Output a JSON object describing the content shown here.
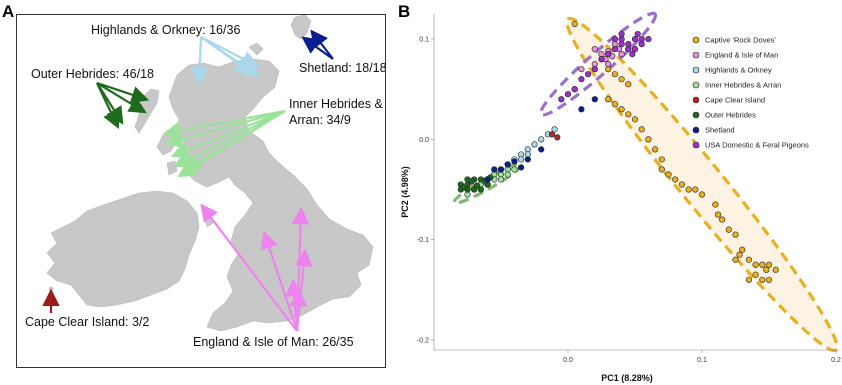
{
  "panel_a": {
    "letter": "A",
    "labels": {
      "highlands": "Highlands & Orkney: 16/36",
      "shetland": "Shetland: 18/18",
      "outer": "Outer Hebrides: 46/18",
      "inner_line1": "Inner Hebrides &",
      "inner_line2": "Arran: 34/9",
      "cape": "Cape Clear Island: 3/2",
      "england": "England & Isle of Man: 26/35"
    },
    "colors": {
      "land": "#c8c8c8",
      "highlands": "#a8d8ea",
      "shetland": "#0a1f8f",
      "outer": "#1e6b1e",
      "inner": "#9be39b",
      "cape": "#9b1c1c",
      "england": "#ee82ee"
    }
  },
  "panel_b": {
    "letter": "B"
  },
  "chart_data": {
    "type": "scatter",
    "xlabel": "PC1 (8.28%)",
    "ylabel": "PC2 (4.98%)",
    "xlim": [
      -0.1,
      0.2
    ],
    "ylim": [
      -0.21,
      0.125
    ],
    "x_ticks": [
      0.0,
      0.1,
      0.2
    ],
    "x_tick_labels": [
      "0.0",
      "0.1",
      "0.2"
    ],
    "y_ticks": [
      0.1,
      0.0,
      -0.1,
      -0.2
    ],
    "y_tick_labels": [
      "0.1",
      "0.0",
      "-0.1",
      "-0.2"
    ],
    "grid": false,
    "legend_position": "top-right",
    "series": [
      {
        "name": "Captive 'Rock Doves'",
        "color": "#e8b020",
        "points": [
          [
            0.03,
            0.07
          ],
          [
            0.035,
            0.065
          ],
          [
            0.04,
            0.06
          ],
          [
            0.045,
            0.055
          ],
          [
            0.03,
            0.04
          ],
          [
            0.035,
            0.035
          ],
          [
            0.04,
            0.03
          ],
          [
            0.045,
            0.025
          ],
          [
            0.05,
            0.02
          ],
          [
            0.055,
            0.01
          ],
          [
            0.06,
            0.0
          ],
          [
            0.065,
            -0.01
          ],
          [
            0.07,
            -0.02
          ],
          [
            0.07,
            -0.03
          ],
          [
            0.075,
            -0.035
          ],
          [
            0.08,
            -0.04
          ],
          [
            0.085,
            -0.045
          ],
          [
            0.09,
            -0.05
          ],
          [
            0.095,
            -0.05
          ],
          [
            0.1,
            -0.055
          ],
          [
            0.11,
            -0.065
          ],
          [
            0.112,
            -0.075
          ],
          [
            0.115,
            -0.08
          ],
          [
            0.12,
            -0.09
          ],
          [
            0.125,
            -0.095
          ],
          [
            0.13,
            -0.11
          ],
          [
            0.128,
            -0.115
          ],
          [
            0.135,
            -0.12
          ],
          [
            0.14,
            -0.125
          ],
          [
            0.145,
            -0.125
          ],
          [
            0.15,
            -0.125
          ],
          [
            0.148,
            -0.13
          ],
          [
            0.155,
            -0.13
          ],
          [
            0.14,
            -0.135
          ],
          [
            0.145,
            -0.14
          ],
          [
            0.135,
            -0.14
          ],
          [
            0.15,
            -0.14
          ],
          [
            0.125,
            -0.12
          ],
          [
            0.005,
            0.115
          ],
          [
            0.025,
            0.08
          ]
        ]
      },
      {
        "name": "England & Isle of Man",
        "color": "#e890d8",
        "points": [
          [
            0.02,
            0.09
          ],
          [
            0.025,
            0.085
          ],
          [
            0.03,
            0.088
          ],
          [
            0.035,
            0.095
          ],
          [
            0.028,
            0.08
          ],
          [
            0.033,
            0.083
          ],
          [
            0.038,
            0.09
          ],
          [
            0.02,
            0.075
          ],
          [
            0.04,
            0.085
          ],
          [
            0.01,
            0.07
          ],
          [
            0.045,
            0.09
          ],
          [
            0.03,
            0.075
          ]
        ]
      },
      {
        "name": "Highlands & Orkney",
        "color": "#a8d8ea",
        "points": [
          [
            -0.05,
            -0.03
          ],
          [
            -0.045,
            -0.025
          ],
          [
            -0.04,
            -0.02
          ],
          [
            -0.035,
            -0.015
          ],
          [
            -0.03,
            -0.01
          ],
          [
            -0.025,
            -0.005
          ],
          [
            -0.02,
            0.0
          ],
          [
            -0.015,
            0.005
          ],
          [
            -0.01,
            0.01
          ],
          [
            -0.055,
            -0.035
          ],
          [
            -0.035,
            -0.02
          ],
          [
            -0.03,
            -0.015
          ]
        ]
      },
      {
        "name": "Inner Hebrides & Arran",
        "color": "#9be39b",
        "points": [
          [
            -0.06,
            -0.04
          ],
          [
            -0.055,
            -0.035
          ],
          [
            -0.05,
            -0.035
          ],
          [
            -0.045,
            -0.03
          ],
          [
            -0.04,
            -0.03
          ],
          [
            -0.065,
            -0.045
          ],
          [
            -0.06,
            -0.045
          ],
          [
            -0.07,
            -0.05
          ],
          [
            -0.075,
            -0.055
          ],
          [
            -0.05,
            -0.04
          ],
          [
            -0.045,
            -0.035
          ],
          [
            -0.055,
            -0.04
          ]
        ]
      },
      {
        "name": "Cape Clear Island",
        "color": "#b02828",
        "points": [
          [
            -0.012,
            0.005
          ],
          [
            -0.008,
            0.002
          ]
        ]
      },
      {
        "name": "Outer Hebrides",
        "color": "#1e6b1e",
        "points": [
          [
            -0.08,
            -0.045
          ],
          [
            -0.075,
            -0.045
          ],
          [
            -0.07,
            -0.04
          ],
          [
            -0.065,
            -0.04
          ],
          [
            -0.08,
            -0.05
          ],
          [
            -0.075,
            -0.05
          ],
          [
            -0.07,
            -0.05
          ],
          [
            -0.065,
            -0.05
          ],
          [
            -0.06,
            -0.045
          ],
          [
            -0.078,
            -0.048
          ],
          [
            -0.072,
            -0.042
          ],
          [
            -0.068,
            -0.046
          ],
          [
            -0.062,
            -0.042
          ],
          [
            -0.058,
            -0.038
          ],
          [
            -0.075,
            -0.04
          ]
        ]
      },
      {
        "name": "Shetland",
        "color": "#0a1f8f",
        "points": [
          [
            -0.045,
            -0.025
          ],
          [
            -0.04,
            -0.022
          ],
          [
            -0.035,
            -0.028
          ],
          [
            -0.05,
            -0.03
          ],
          [
            -0.03,
            -0.02
          ],
          [
            0.01,
            0.03
          ],
          [
            0.02,
            0.04
          ],
          [
            0.005,
            0.05
          ],
          [
            -0.06,
            -0.04
          ],
          [
            -0.055,
            -0.03
          ],
          [
            -0.02,
            -0.01
          ]
        ]
      },
      {
        "name": "USA Domestic & Feral Pigeons",
        "color": "#9b30c8",
        "points": [
          [
            0.04,
            0.1
          ],
          [
            0.045,
            0.095
          ],
          [
            0.05,
            0.1
          ],
          [
            0.055,
            0.095
          ],
          [
            0.05,
            0.09
          ],
          [
            0.045,
            0.09
          ],
          [
            0.04,
            0.095
          ],
          [
            0.035,
            0.1
          ],
          [
            0.055,
            0.1
          ],
          [
            0.06,
            0.1
          ],
          [
            0.048,
            0.085
          ],
          [
            0.035,
            0.09
          ],
          [
            0.03,
            0.085
          ],
          [
            0.025,
            0.08
          ],
          [
            0.02,
            0.07
          ],
          [
            0.015,
            0.065
          ],
          [
            0.01,
            0.06
          ],
          [
            0.005,
            0.05
          ],
          [
            0.0,
            0.045
          ],
          [
            -0.005,
            0.04
          ],
          [
            0.04,
            0.105
          ],
          [
            0.052,
            0.105
          ]
        ]
      }
    ],
    "ellipses": [
      {
        "series": "Captive 'Rock Doves'",
        "color": "#e8b020",
        "fill": "#fdf3e3",
        "x1": 0.0,
        "y1": 0.12,
        "x2": 0.2,
        "y2": -0.21,
        "half_width": 0.016
      },
      {
        "series": "USA Domestic & Feral Pigeons",
        "color": "#9b70c8",
        "fill": "none",
        "x1": -0.02,
        "y1": 0.025,
        "x2": 0.065,
        "y2": 0.125,
        "half_width": 0.008
      },
      {
        "series": "Inner Hebrides & Arran",
        "color": "#7fb86f",
        "fill": "none",
        "x1": -0.085,
        "y1": -0.063,
        "x2": -0.035,
        "y2": -0.025,
        "half_width": 0.004
      }
    ]
  }
}
